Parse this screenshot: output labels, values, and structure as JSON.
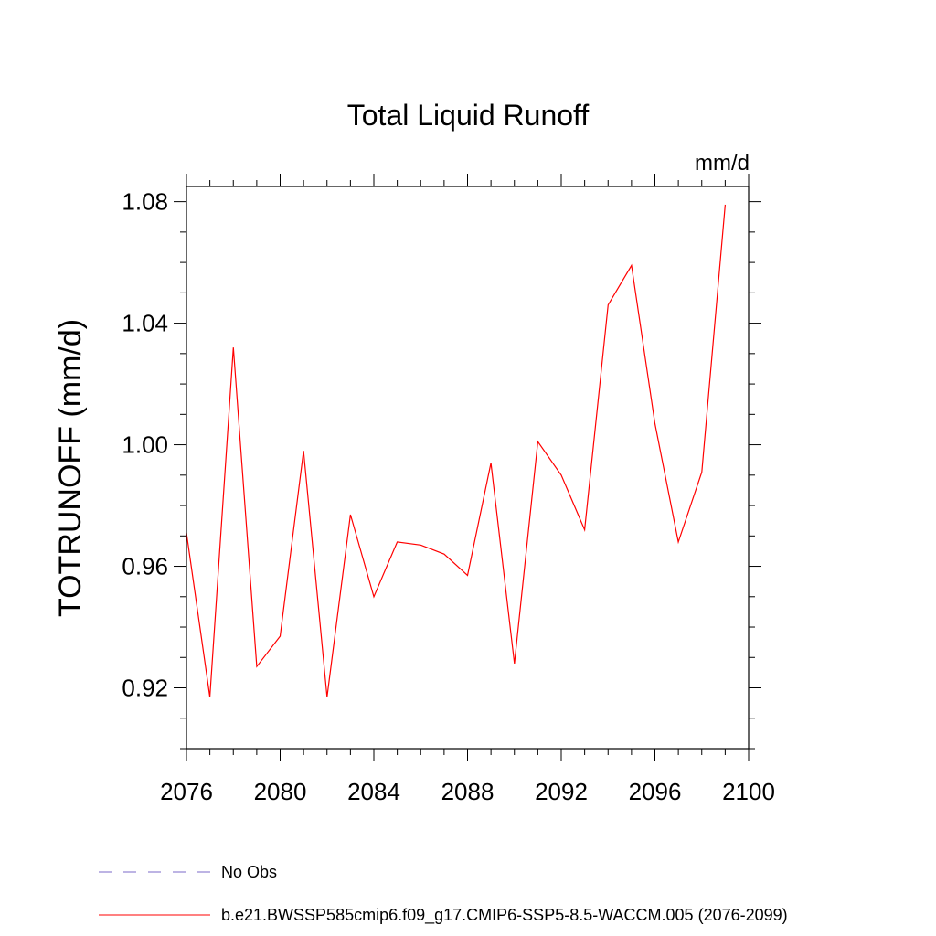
{
  "chart_data": {
    "type": "line",
    "title": "Total Liquid Runoff",
    "units_label": "mm/d",
    "ylabel": "TOTRUNOFF  (mm/d)",
    "xlabel": "",
    "xlim": [
      2076,
      2100
    ],
    "ylim": [
      0.9,
      1.085
    ],
    "x_ticks": [
      2076,
      2080,
      2084,
      2088,
      2092,
      2096,
      2100
    ],
    "y_ticks": [
      0.92,
      0.96,
      1.0,
      1.04,
      1.08
    ],
    "y_tick_labels": [
      "0.92",
      "0.96",
      "1.00",
      "1.04",
      "1.08"
    ],
    "grid": false,
    "legend_position": "bottom-left",
    "series": [
      {
        "name": "b.e21.BWSSP585cmip6.f09_g17.CMIP6-SSP5-8.5-WACCM.005 (2076-2099)",
        "color": "#ff0000",
        "dash": "solid",
        "x": [
          2076,
          2077,
          2078,
          2079,
          2080,
          2081,
          2082,
          2083,
          2084,
          2085,
          2086,
          2087,
          2088,
          2089,
          2090,
          2091,
          2092,
          2093,
          2094,
          2095,
          2096,
          2097,
          2098,
          2099
        ],
        "values": [
          0.971,
          0.917,
          1.032,
          0.927,
          0.937,
          0.998,
          0.917,
          0.977,
          0.95,
          0.968,
          0.967,
          0.964,
          0.957,
          0.994,
          0.928,
          1.001,
          0.99,
          0.972,
          1.046,
          1.059,
          1.007,
          0.968,
          0.991,
          1.079
        ]
      }
    ],
    "legend": [
      {
        "label": "No Obs",
        "color": "#7b68c8",
        "dash": "dashed"
      },
      {
        "label": "b.e21.BWSSP585cmip6.f09_g17.CMIP6-SSP5-8.5-WACCM.005 (2076-2099)",
        "color": "#ff0000",
        "dash": "solid"
      }
    ]
  }
}
